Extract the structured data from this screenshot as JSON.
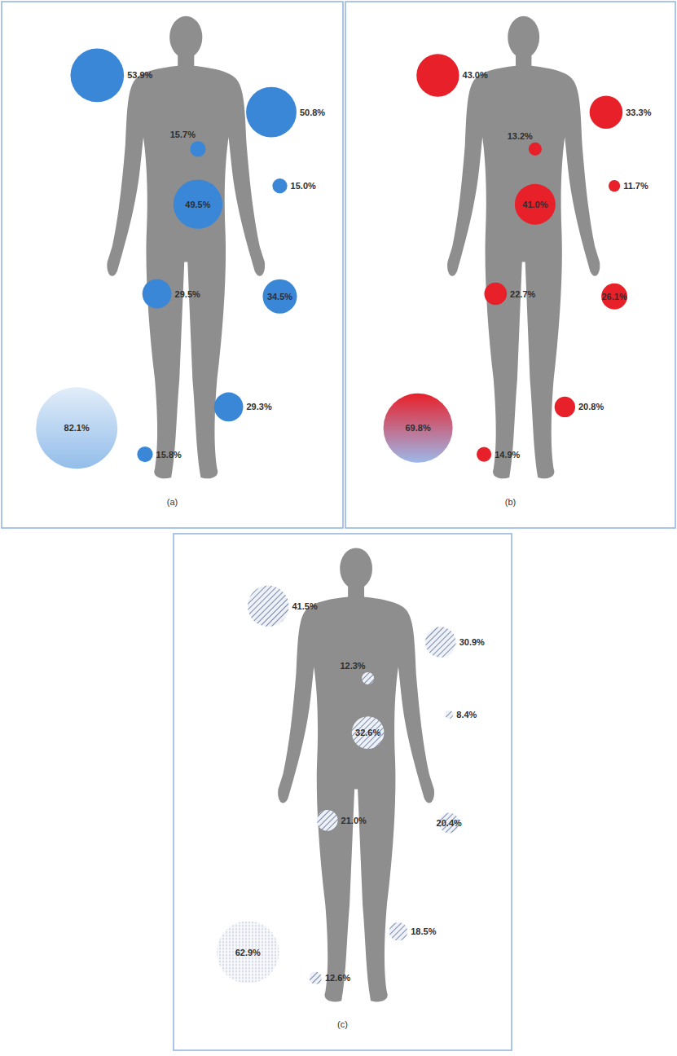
{
  "chart_data": [
    {
      "type": "bubble",
      "title": "(a)",
      "color": "#3a87d8",
      "marker": "circle",
      "data_labels": true,
      "values": [
        53.9,
        50.8,
        15.7,
        15.0,
        49.5,
        34.5,
        29.5,
        29.3,
        15.8,
        82.1
      ],
      "value_labels": [
        "53.9%",
        "50.8%",
        "15.7%",
        "15.0%",
        "49.5%",
        "34.5%",
        "29.5%",
        "29.3%",
        "15.8%",
        "82.1%"
      ]
    },
    {
      "type": "bubble",
      "title": "(b)",
      "color": "#e8202a",
      "marker": "circle",
      "data_labels": true,
      "values": [
        43.0,
        33.3,
        13.2,
        11.7,
        41.0,
        26.1,
        22.7,
        20.8,
        14.9,
        69.8
      ],
      "value_labels": [
        "43.0%",
        "33.3%",
        "13.2%",
        "11.7%",
        "41.0%",
        "26.1%",
        "22.7%",
        "20.8%",
        "14.9%",
        "69.8%"
      ]
    },
    {
      "type": "bubble",
      "title": "(c)",
      "color": "#5a6f96",
      "marker": "hatch",
      "data_labels": true,
      "values": [
        41.5,
        30.9,
        12.3,
        8.4,
        32.6,
        20.4,
        21.0,
        18.5,
        12.6,
        62.9
      ],
      "value_labels": [
        "41.5%",
        "30.9%",
        "12.3%",
        "8.4%",
        "32.6%",
        "20.4%",
        "21.0%",
        "18.5%",
        "12.6%",
        "62.9%"
      ]
    }
  ]
}
